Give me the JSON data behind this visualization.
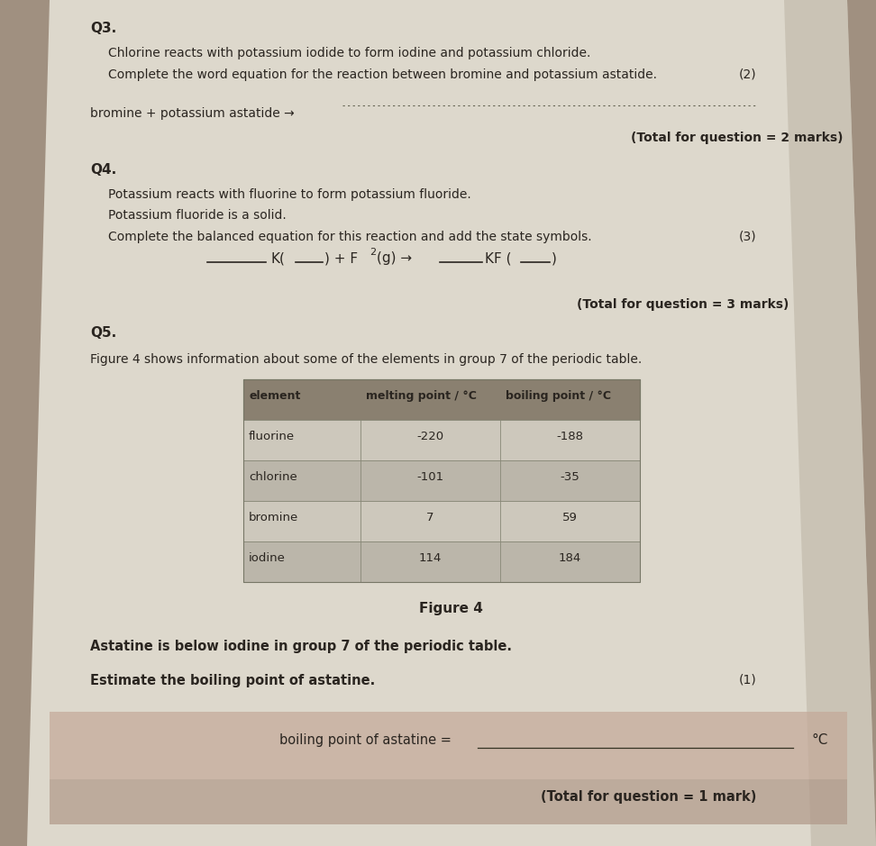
{
  "bg_color": "#a09080",
  "page_color": "#ddd8cc",
  "title_q3": "Q3.",
  "q3_line1": "Chlorine reacts with potassium iodide to form iodine and potassium chloride.",
  "q3_line2": "Complete the word equation for the reaction between bromine and potassium astatide.",
  "marks_q3": "(2)",
  "q3_equation": "bromine + potassium astatide →",
  "q3_total": "(Total for question = 2 marks)",
  "title_q4": "Q4.",
  "q4_line1": "Potassium reacts with fluorine to form potassium fluoride.",
  "q4_line2": "Potassium fluoride is a solid.",
  "q4_line3": "Complete the balanced equation for this reaction and add the state symbols.",
  "marks_q4": "(3)",
  "q4_total": "(Total for question = 3 marks)",
  "title_q5": "Q5.",
  "q5_line1": "Figure 4 shows information about some of the elements in group 7 of the periodic table.",
  "table_header": [
    "element",
    "melting point / °C",
    "boiling point / °C"
  ],
  "table_rows": [
    [
      "fluorine",
      "-220",
      "-188"
    ],
    [
      "chlorine",
      "-101",
      "-35"
    ],
    [
      "bromine",
      "7",
      "59"
    ],
    [
      "iodine",
      "114",
      "184"
    ]
  ],
  "figure_label": "Figure 4",
  "q5_line2": "Astatine is below iodine in group 7 of the periodic table.",
  "q5_line3": "Estimate the boiling point of astatine.",
  "marks_q5": "(1)",
  "q5_answer_label": "boiling point of astatine =",
  "q5_unit": "°C",
  "q5_total": "(Total for question = 1 mark)",
  "text_color": "#2a2520",
  "table_header_bg": "#8a8070",
  "table_row_colors": [
    "#cdc8bc",
    "#bbb6aa",
    "#cdc8bc",
    "#bbb6aa"
  ],
  "answer_band_color": "#c4a898",
  "total_band_color": "#b09888"
}
